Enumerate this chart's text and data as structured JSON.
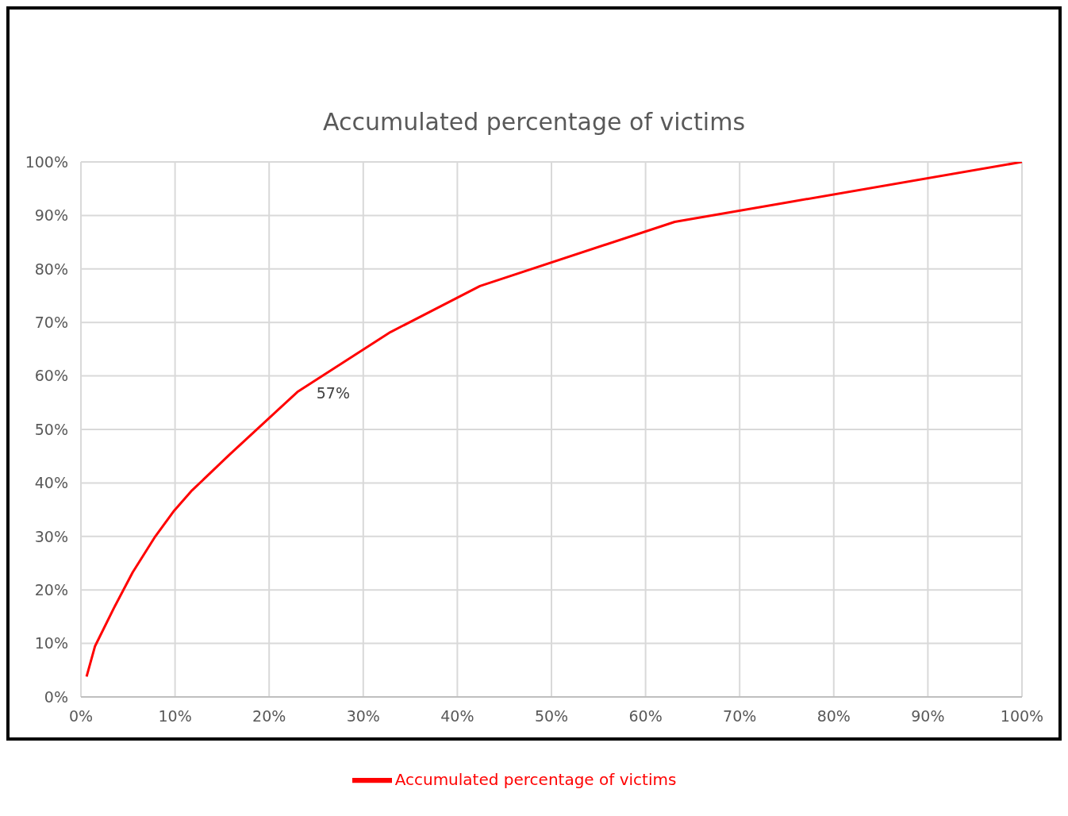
{
  "chart_data": {
    "type": "line",
    "title": "Accumulated percentage of victims",
    "x": [
      0.6,
      1.5,
      3.5,
      5.5,
      7.9,
      9.9,
      11.8,
      15.8,
      23,
      32.9,
      42.4,
      63.1,
      100
    ],
    "series": [
      {
        "name": "Accumulated percentage of victims",
        "color": "#ff0000",
        "values": [
          3.8,
          9.5,
          16.6,
          23.3,
          30,
          34.8,
          38.6,
          45.3,
          57,
          68.2,
          76.8,
          88.8,
          100
        ],
        "value_labels": [
          null,
          null,
          null,
          null,
          null,
          null,
          null,
          null,
          "57%",
          null,
          null,
          null,
          null
        ]
      }
    ],
    "xlim": [
      0,
      100
    ],
    "xticks": [
      {
        "value": 0,
        "label": "0%"
      },
      {
        "value": 10,
        "label": "10%"
      },
      {
        "value": 20,
        "label": "20%"
      },
      {
        "value": 30,
        "label": "30%"
      },
      {
        "value": 40,
        "label": "40%"
      },
      {
        "value": 50,
        "label": "50%"
      },
      {
        "value": 60,
        "label": "60%"
      },
      {
        "value": 70,
        "label": "70%"
      },
      {
        "value": 80,
        "label": "80%"
      },
      {
        "value": 90,
        "label": "90%"
      },
      {
        "value": 100,
        "label": "100%"
      }
    ],
    "ylim": [
      0,
      100
    ],
    "yticks": [
      {
        "value": 0,
        "label": "0%"
      },
      {
        "value": 10,
        "label": "10%"
      },
      {
        "value": 20,
        "label": "20%"
      },
      {
        "value": 30,
        "label": "30%"
      },
      {
        "value": 40,
        "label": "40%"
      },
      {
        "value": 50,
        "label": "50%"
      },
      {
        "value": 60,
        "label": "60%"
      },
      {
        "value": 70,
        "label": "70%"
      },
      {
        "value": 80,
        "label": "80%"
      },
      {
        "value": 90,
        "label": "90%"
      },
      {
        "value": 100,
        "label": "100%"
      }
    ],
    "grid": true,
    "legend": "bottom",
    "marker": "none",
    "line_style": "solid"
  }
}
